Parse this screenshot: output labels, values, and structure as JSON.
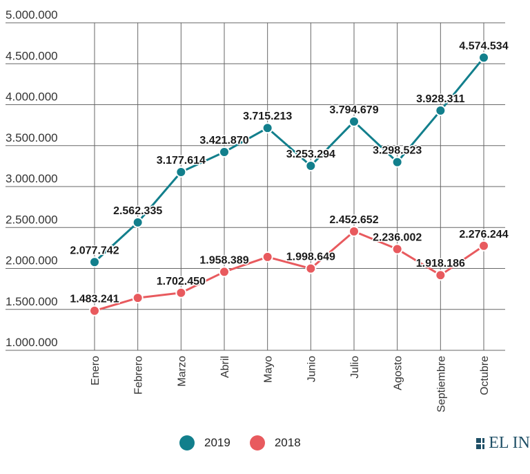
{
  "chart_data": {
    "type": "line",
    "categories": [
      "Enero",
      "Febrero",
      "Marzo",
      "Abril",
      "Mayo",
      "Junio",
      "Julio",
      "Agosto",
      "Septiembre",
      "Octubre"
    ],
    "series": [
      {
        "name": "2019",
        "color": "#127f8c",
        "values": [
          2077742,
          2562335,
          3177614,
          3421870,
          3715213,
          3253294,
          3794679,
          3298523,
          3928311,
          4574534
        ],
        "labels": [
          "2.077.742",
          "2.562.335",
          "3.177.614",
          "3.421.870",
          "3.715.213",
          "3.253.294",
          "3.794.679",
          "3.298.523",
          "3.928.311",
          "4.574.534"
        ]
      },
      {
        "name": "2018",
        "color": "#e85a5e",
        "values": [
          1483241,
          1640000,
          1702450,
          1958389,
          2140000,
          1998649,
          2452652,
          2236002,
          1918186,
          2276244
        ],
        "labels": [
          "1.483.241",
          "",
          "1.702.450",
          "1.958.389",
          "",
          "1.998.649",
          "2.452.652",
          "2.236.002",
          "1.918.186",
          "2.276.244"
        ]
      }
    ],
    "yticks": [
      1000000,
      1500000,
      2000000,
      2500000,
      3000000,
      3500000,
      4000000,
      4500000,
      5000000
    ],
    "ytick_labels": [
      "1.000.000",
      "1.500.000",
      "2.000.000",
      "2.500.000",
      "3.000.000",
      "3.500.000",
      "4.000.000",
      "4.500.000",
      "5.000.000"
    ],
    "ylim": [
      1000000,
      5000000
    ],
    "grid": true,
    "legend_position": "bottom"
  },
  "brand": {
    "text": "EL IN",
    "icon": "grid-logo-icon"
  }
}
